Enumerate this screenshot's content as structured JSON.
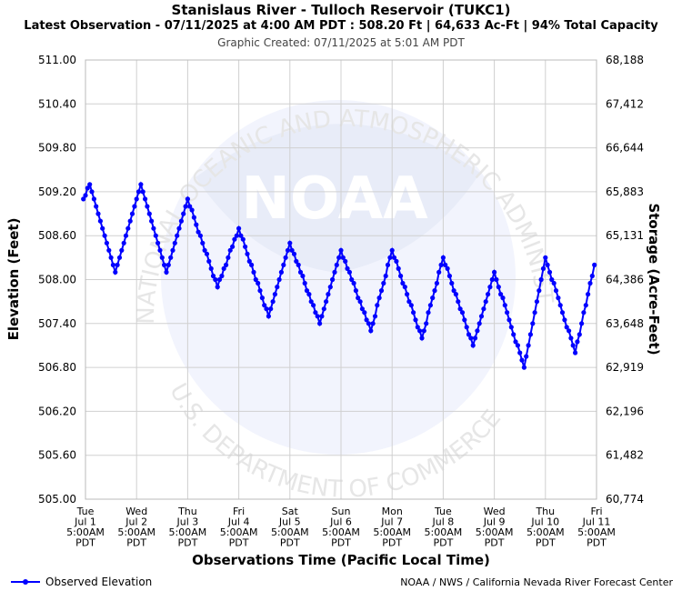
{
  "header": {
    "title": "Stanislaus River - Tulloch Reservoir (TUKC1)",
    "subtitle": "Latest Observation - 07/11/2025 at 4:00 AM PDT : 508.20 Ft | 64,633 Ac-Ft | 94% Total Capacity",
    "created": "Graphic Created: 07/11/2025 at 5:01 AM PDT"
  },
  "watermark": {
    "logo_text": "NOAA",
    "ring_top": "NATIONAL OCEANIC AND ATMOSPHERIC ADMINISTRATION",
    "ring_bottom": "U.S. DEPARTMENT OF COMMERCE"
  },
  "legend": {
    "series_label": "Observed Elevation"
  },
  "footer": {
    "credit": "NOAA / NWS / California Nevada River Forecast Center"
  },
  "colors": {
    "series": "#0000ff",
    "grid": "#d0d0d0",
    "watermark": "#e8ecf8"
  },
  "chart_data": {
    "type": "line",
    "xlabel": "Observations Time (Pacific Local Time)",
    "ylabel": "Elevation (Feet)",
    "y2label": "Storage (Acre-Feet)",
    "ylim": [
      505.0,
      511.0
    ],
    "y_ticks": [
      "505.00",
      "505.60",
      "506.20",
      "506.80",
      "507.40",
      "508.00",
      "508.60",
      "509.20",
      "509.80",
      "510.40",
      "511.00"
    ],
    "y2_ticks": [
      "60,774",
      "61,482",
      "62,196",
      "62,919",
      "63,648",
      "64,386",
      "65,131",
      "65,883",
      "66,644",
      "67,412",
      "68,188"
    ],
    "x_ticks": [
      [
        "Tue",
        "Jul 1",
        "5:00AM",
        "PDT"
      ],
      [
        "Wed",
        "Jul 2",
        "5:00AM",
        "PDT"
      ],
      [
        "Thu",
        "Jul 3",
        "5:00AM",
        "PDT"
      ],
      [
        "Fri",
        "Jul 4",
        "5:00AM",
        "PDT"
      ],
      [
        "Sat",
        "Jul 5",
        "5:00AM",
        "PDT"
      ],
      [
        "Sun",
        "Jul 6",
        "5:00AM",
        "PDT"
      ],
      [
        "Mon",
        "Jul 7",
        "5:00AM",
        "PDT"
      ],
      [
        "Tue",
        "Jul 8",
        "5:00AM",
        "PDT"
      ],
      [
        "Wed",
        "Jul 9",
        "5:00AM",
        "PDT"
      ],
      [
        "Thu",
        "Jul 10",
        "5:00AM",
        "PDT"
      ],
      [
        "Fri",
        "Jul 11",
        "5:00AM",
        "PDT"
      ]
    ],
    "xlim": [
      "07/01/2025 05:00 PDT",
      "07/11/2025 05:00 PDT"
    ],
    "series": [
      {
        "name": "Observed Elevation",
        "sampling": "hourly",
        "start": "07/01/2025 05:00 PDT",
        "extrema": [
          {
            "t": "07/01/2025 04:00",
            "v": 509.1
          },
          {
            "t": "07/01/2025 07:00",
            "v": 509.3
          },
          {
            "t": "07/01/2025 19:00",
            "v": 508.1
          },
          {
            "t": "07/02/2025 07:00",
            "v": 509.3
          },
          {
            "t": "07/02/2025 19:00",
            "v": 508.1
          },
          {
            "t": "07/03/2025 05:00",
            "v": 509.1
          },
          {
            "t": "07/03/2025 19:00",
            "v": 507.9
          },
          {
            "t": "07/04/2025 05:00",
            "v": 508.7
          },
          {
            "t": "07/04/2025 19:00",
            "v": 507.5
          },
          {
            "t": "07/05/2025 05:00",
            "v": 508.5
          },
          {
            "t": "07/05/2025 19:00",
            "v": 507.4
          },
          {
            "t": "07/06/2025 05:00",
            "v": 508.4
          },
          {
            "t": "07/06/2025 19:00",
            "v": 507.3
          },
          {
            "t": "07/07/2025 05:00",
            "v": 508.4
          },
          {
            "t": "07/07/2025 19:00",
            "v": 507.2
          },
          {
            "t": "07/08/2025 05:00",
            "v": 508.3
          },
          {
            "t": "07/08/2025 19:00",
            "v": 507.1
          },
          {
            "t": "07/09/2025 05:00",
            "v": 508.1
          },
          {
            "t": "07/09/2025 19:00",
            "v": 506.8
          },
          {
            "t": "07/10/2025 05:00",
            "v": 508.3
          },
          {
            "t": "07/10/2025 19:00",
            "v": 507.0
          },
          {
            "t": "07/11/2025 04:00",
            "v": 508.2
          }
        ]
      }
    ],
    "grid": true,
    "legend_position": "bottom-left"
  }
}
